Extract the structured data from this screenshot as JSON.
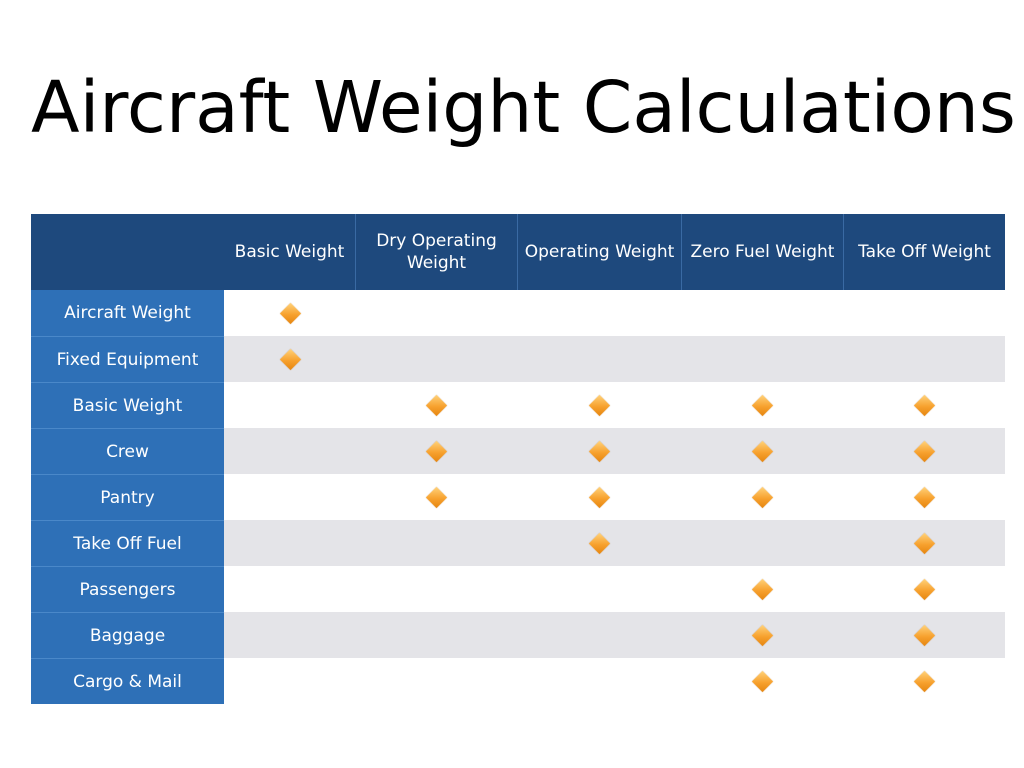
{
  "slide": {
    "title": "Aircraft Weight Calculations"
  },
  "table": {
    "corner_label": "",
    "columns": [
      "Basic Weight",
      "Dry Operating Weight",
      "Operating Weight",
      "Zero Fuel Weight",
      "Take Off Weight"
    ],
    "rows": [
      {
        "label": "Aircraft Weight",
        "marks": [
          true,
          false,
          false,
          false,
          false
        ]
      },
      {
        "label": "Fixed Equipment",
        "marks": [
          true,
          false,
          false,
          false,
          false
        ]
      },
      {
        "label": "Basic Weight",
        "marks": [
          false,
          true,
          true,
          true,
          true
        ]
      },
      {
        "label": "Crew",
        "marks": [
          false,
          true,
          true,
          true,
          true
        ]
      },
      {
        "label": "Pantry",
        "marks": [
          false,
          true,
          true,
          true,
          true
        ]
      },
      {
        "label": "Take Off Fuel",
        "marks": [
          false,
          false,
          true,
          false,
          true
        ]
      },
      {
        "label": "Passengers",
        "marks": [
          false,
          false,
          false,
          true,
          true
        ]
      },
      {
        "label": "Baggage",
        "marks": [
          false,
          false,
          false,
          true,
          true
        ]
      },
      {
        "label": "Cargo & Mail",
        "marks": [
          false,
          false,
          false,
          true,
          true
        ]
      }
    ],
    "mark_icon": "orange-diamond-icon",
    "colors": {
      "header_bg": "#1e497d",
      "row_label_bg": "#2e70b7",
      "alt_row_bg": "#e4e4e8",
      "mark": "#f7a12e"
    }
  }
}
